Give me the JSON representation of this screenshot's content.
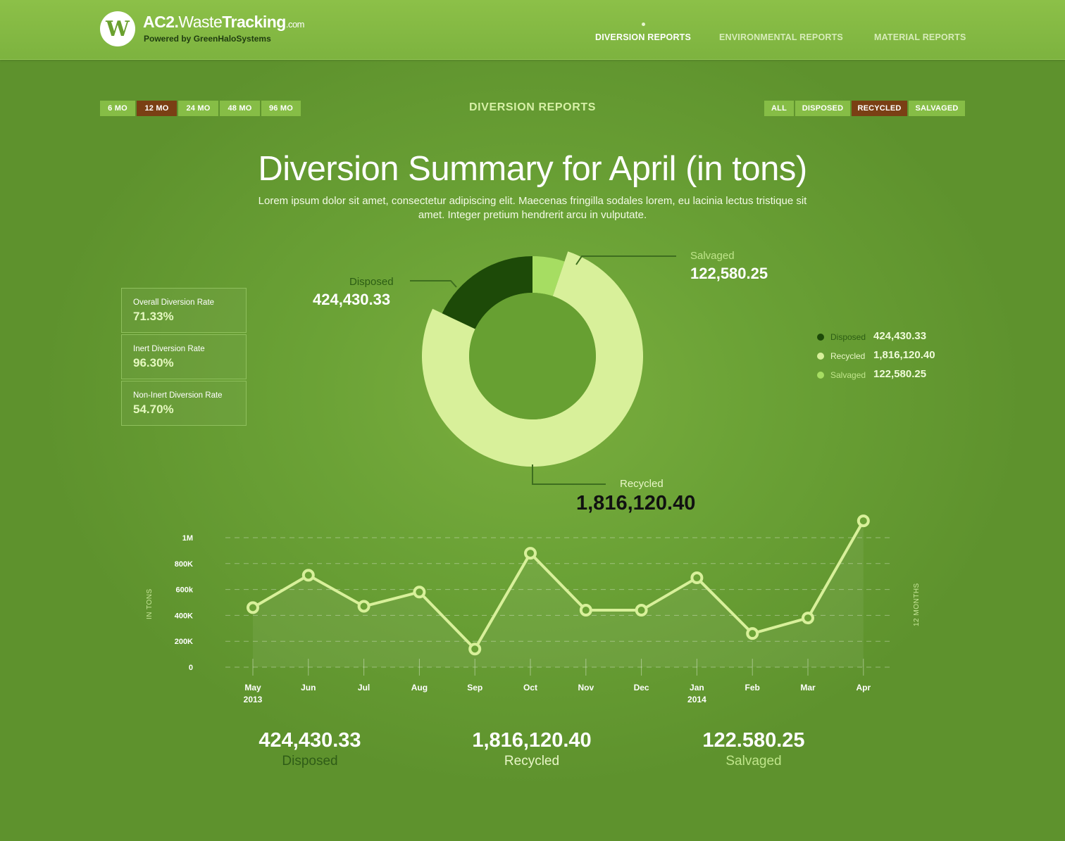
{
  "header": {
    "brand_part1": "AC2.",
    "brand_part2": "Waste",
    "brand_part3": "Tracking",
    "brand_tld": ".com",
    "tagline": "Powered by GreenHaloSystems",
    "nav": [
      "DIVERSION REPORTS",
      "ENVIRONMENTAL REPORTS",
      "MATERIAL REPORTS"
    ],
    "active_nav": "DIVERSION REPORTS"
  },
  "filters": {
    "periods": [
      "6 MO",
      "12 MO",
      "24 MO",
      "48 MO",
      "96 MO"
    ],
    "selected_period": "12 MO",
    "types": [
      "ALL",
      "DISPOSED",
      "RECYCLED",
      "SALVAGED"
    ],
    "selected_type": "RECYCLED"
  },
  "section_title": "DIVERSION REPORTS",
  "title": "Diversion Summary for April (in tons)",
  "subtitle": "Lorem ipsum dolor sit amet, consectetur adipiscing elit.  Maecenas fringilla sodales lorem, eu lacinia lectus tristique sit amet.  Integer pretium hendrerit arcu in vulputate.",
  "rates": [
    {
      "label": "Overall Diversion Rate",
      "value": "71.33%"
    },
    {
      "label": "Inert Diversion Rate",
      "value": "96.30%"
    },
    {
      "label": "Non-Inert Diversion Rate",
      "value": "54.70%"
    }
  ],
  "donut": {
    "slices": [
      {
        "name": "Disposed",
        "value_text": "424,430.33",
        "value": 424430.33,
        "color": "#1d4a08"
      },
      {
        "name": "Recycled",
        "value_text": "1,816,120.40",
        "value": 1816120.4,
        "color": "#d8f09a"
      },
      {
        "name": "Salvaged",
        "value_text": "122,580.25",
        "value": 122580.25,
        "color": "#a6dd62"
      }
    ]
  },
  "legend": [
    {
      "name": "Disposed",
      "value": "424,430.33",
      "color": "#1d4a08"
    },
    {
      "name": "Recycled",
      "value": "1,816,120.40",
      "color": "#d8f09a"
    },
    {
      "name": "Salvaged",
      "value": "122,580.25",
      "color": "#a6dd62"
    }
  ],
  "chart_data": {
    "type": "line",
    "categories": [
      "May",
      "Jun",
      "Jul",
      "Aug",
      "Sep",
      "Oct",
      "Nov",
      "Dec",
      "Jan",
      "Feb",
      "Mar",
      "Apr"
    ],
    "category_sublabels": [
      "2013",
      "",
      "",
      "",
      "",
      "",
      "",
      "",
      "2014",
      "",
      "",
      ""
    ],
    "yticks": [
      "0",
      "200K",
      "400K",
      "600k",
      "800K",
      "1M"
    ],
    "ylabel": "IN TONS",
    "right_label": "12 MONTHS",
    "ylim": [
      0,
      1000000
    ],
    "series": [
      {
        "values": [
          460000,
          710000,
          470000,
          580000,
          140000,
          880000,
          440000,
          440000,
          690000,
          260000,
          380000,
          1130000
        ]
      }
    ],
    "line_color": "#d8f09a"
  },
  "totals": [
    {
      "value": "424,430.33",
      "name": "Disposed",
      "color": "#2f5c17"
    },
    {
      "value": "1,816,120.40",
      "name": "Recycled",
      "color": "#e9f7c8"
    },
    {
      "value": "122.580.25",
      "name": "Salvaged",
      "color": "#bfe58a"
    }
  ]
}
